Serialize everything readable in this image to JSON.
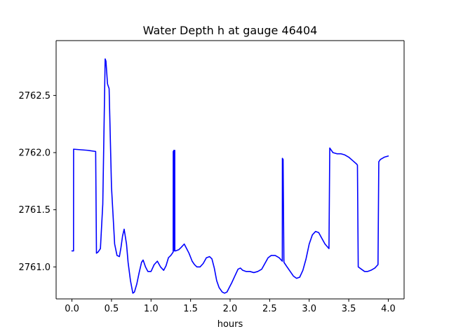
{
  "chart_data": {
    "type": "line",
    "title": "Water Depth h at gauge 46404",
    "xlabel": "hours",
    "ylabel": "",
    "xlim": [
      -0.2,
      4.2
    ],
    "ylim": [
      2760.72,
      2762.98
    ],
    "x_ticks": [
      0.0,
      0.5,
      1.0,
      1.5,
      2.0,
      2.5,
      3.0,
      3.5,
      4.0
    ],
    "x_tick_labels": [
      "0.0",
      "0.5",
      "1.0",
      "1.5",
      "2.0",
      "2.5",
      "3.0",
      "3.5",
      "4.0"
    ],
    "y_ticks": [
      2761.0,
      2761.5,
      2762.0,
      2762.5
    ],
    "y_tick_labels": [
      "2761.0",
      "2761.5",
      "2762.0",
      "2762.5"
    ],
    "grid": false,
    "series": [
      {
        "color": "#0000ff",
        "x": [
          0.0,
          0.02,
          0.021,
          0.2,
          0.3,
          0.31,
          0.33,
          0.36,
          0.39,
          0.42,
          0.43,
          0.45,
          0.47,
          0.5,
          0.54,
          0.57,
          0.6,
          0.62,
          0.64,
          0.66,
          0.69,
          0.71,
          0.74,
          0.77,
          0.79,
          0.82,
          0.85,
          0.88,
          0.9,
          0.93,
          0.96,
          1.0,
          1.04,
          1.08,
          1.12,
          1.16,
          1.19,
          1.22,
          1.25,
          1.28,
          1.281,
          1.29,
          1.295,
          1.3,
          1.301,
          1.31,
          1.35,
          1.38,
          1.42,
          1.45,
          1.48,
          1.52,
          1.55,
          1.58,
          1.62,
          1.66,
          1.7,
          1.74,
          1.77,
          1.8,
          1.83,
          1.86,
          1.9,
          1.93,
          1.96,
          1.99,
          2.02,
          2.06,
          2.1,
          2.13,
          2.16,
          2.2,
          2.25,
          2.3,
          2.35,
          2.4,
          2.44,
          2.48,
          2.52,
          2.57,
          2.62,
          2.66,
          2.661,
          2.67,
          2.68,
          2.681,
          2.72,
          2.76,
          2.8,
          2.84,
          2.88,
          2.92,
          2.96,
          3.0,
          3.04,
          3.08,
          3.12,
          3.16,
          3.2,
          3.25,
          3.26,
          3.3,
          3.35,
          3.4,
          3.45,
          3.5,
          3.55,
          3.6,
          3.61,
          3.62,
          3.66,
          3.7,
          3.74,
          3.78,
          3.83,
          3.87,
          3.88,
          3.9,
          3.95,
          4.0
        ],
        "y": [
          2761.14,
          2761.14,
          2762.03,
          2762.02,
          2762.01,
          2761.12,
          2761.13,
          2761.16,
          2761.55,
          2762.82,
          2762.8,
          2762.6,
          2762.56,
          2761.7,
          2761.2,
          2761.1,
          2761.09,
          2761.17,
          2761.27,
          2761.33,
          2761.2,
          2761.04,
          2760.88,
          2760.77,
          2760.78,
          2760.85,
          2760.95,
          2761.04,
          2761.06,
          2761.0,
          2760.96,
          2760.96,
          2761.02,
          2761.05,
          2761.0,
          2760.97,
          2761.01,
          2761.08,
          2761.1,
          2761.13,
          2762.01,
          2762.02,
          2761.14,
          2762.02,
          2761.14,
          2761.14,
          2761.15,
          2761.17,
          2761.2,
          2761.16,
          2761.12,
          2761.05,
          2761.02,
          2761.0,
          2761.0,
          2761.03,
          2761.08,
          2761.09,
          2761.07,
          2760.99,
          2760.88,
          2760.82,
          2760.78,
          2760.77,
          2760.78,
          2760.82,
          2760.86,
          2760.92,
          2760.98,
          2760.99,
          2760.97,
          2760.96,
          2760.96,
          2760.95,
          2760.96,
          2760.98,
          2761.03,
          2761.08,
          2761.1,
          2761.1,
          2761.08,
          2761.05,
          2761.95,
          2761.94,
          2761.07,
          2761.04,
          2761.0,
          2760.96,
          2760.92,
          2760.9,
          2760.91,
          2760.97,
          2761.07,
          2761.2,
          2761.28,
          2761.31,
          2761.3,
          2761.25,
          2761.2,
          2761.16,
          2762.04,
          2762.0,
          2761.99,
          2761.99,
          2761.98,
          2761.96,
          2761.93,
          2761.9,
          2761.89,
          2761.0,
          2760.98,
          2760.96,
          2760.96,
          2760.97,
          2760.99,
          2761.02,
          2761.92,
          2761.94,
          2761.96,
          2761.97
        ]
      }
    ]
  }
}
